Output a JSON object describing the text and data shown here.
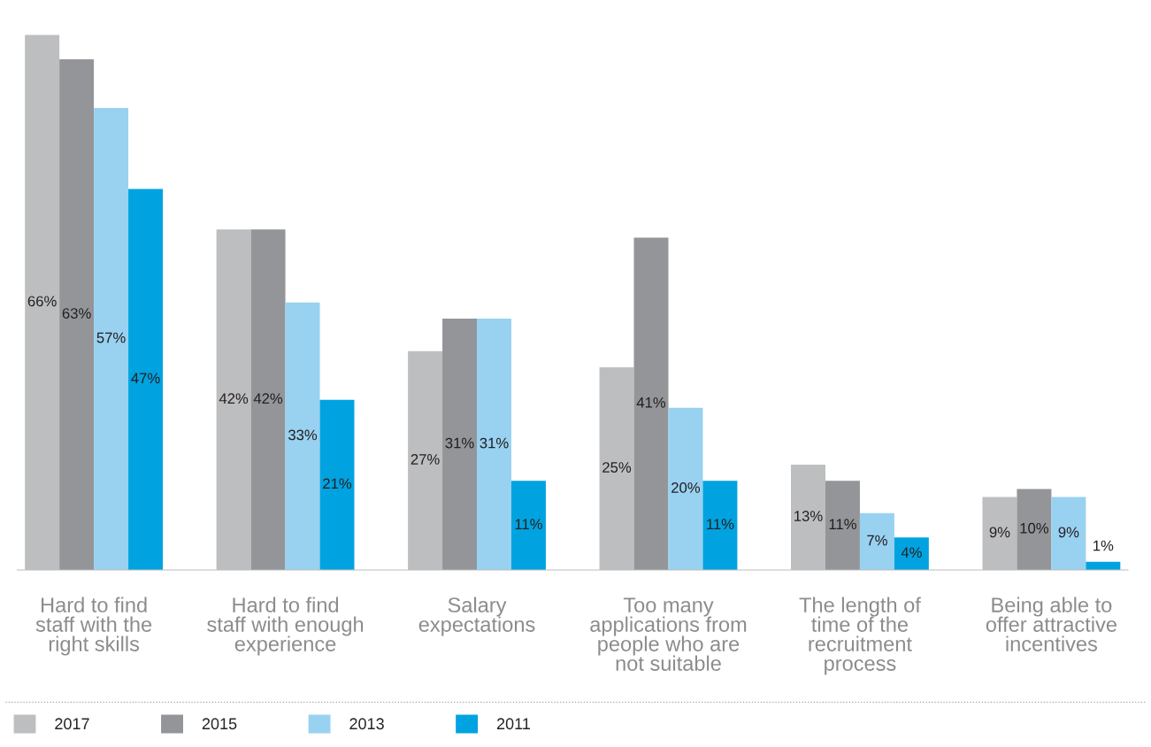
{
  "chart_data": {
    "type": "bar",
    "categories": [
      "Hard to find\nstaff with the\nright skills",
      "Hard to find\nstaff with enough\nexperience",
      "Salary\nexpectations",
      "Too many\napplications from\npeople who are\nnot suitable",
      "The length of\ntime of the\nrecruitment\nprocess",
      "Being able to\noffer attractive\nincentives"
    ],
    "series": [
      {
        "name": "2017",
        "color": "#bdbec0",
        "values": [
          66,
          42,
          27,
          25,
          13,
          9
        ],
        "value_labels": [
          "66%",
          "42%",
          "27%",
          "25%",
          "13%",
          "9%"
        ]
      },
      {
        "name": "2015",
        "color": "#939598",
        "values": [
          63,
          42,
          31,
          41,
          11,
          10
        ],
        "value_labels": [
          "63%",
          "42%",
          "31%",
          "41%",
          "11%",
          "10%"
        ]
      },
      {
        "name": "2013",
        "color": "#99d1f1",
        "values": [
          57,
          33,
          31,
          20,
          7,
          9
        ],
        "value_labels": [
          "57%",
          "33%",
          "31%",
          "20%",
          "7%",
          "9%"
        ]
      },
      {
        "name": "2011",
        "color": "#00a3e0",
        "values": [
          47,
          21,
          11,
          11,
          4,
          1
        ],
        "value_labels": [
          "47%",
          "21%",
          "11%",
          "11%",
          "4%",
          "1%"
        ]
      }
    ],
    "legend": "bottom left",
    "grid": false
  }
}
